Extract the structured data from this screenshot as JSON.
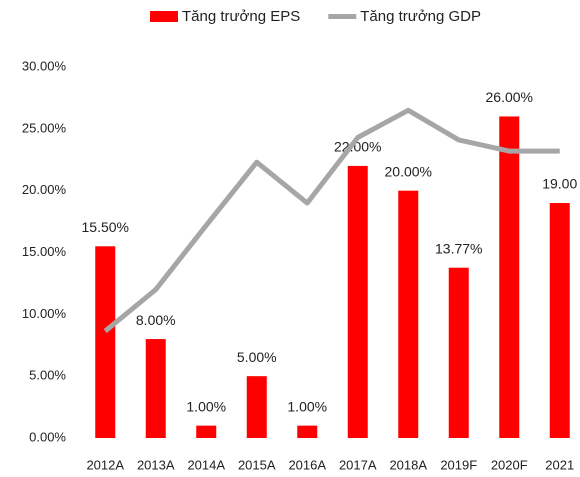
{
  "chart_data": {
    "type": "bar",
    "categories": [
      "2012A",
      "2013A",
      "2014A",
      "2015A",
      "2016A",
      "2017A",
      "2018A",
      "2019F",
      "2020F",
      "2021"
    ],
    "series": [
      {
        "name": "Tăng trưởng EPS",
        "type": "bar",
        "color": "#ff0000",
        "values": [
          15.5,
          8,
          1,
          5,
          1,
          22,
          20,
          13.77,
          26,
          19
        ],
        "value_labels": [
          "15.50%",
          "8.00%",
          "1.00%",
          "5.00%",
          "1.00%",
          "22.00%",
          "20.00%",
          "13.77%",
          "26.00%",
          "19.00"
        ]
      },
      {
        "name": "Tăng trưởng GDP",
        "type": "line",
        "color": "#a6a6a6",
        "values": [
          8.65,
          12,
          17.2,
          22.3,
          19,
          24.3,
          26.5,
          24.1,
          23.2,
          23.2
        ]
      }
    ],
    "ylim": [
      0,
      30
    ],
    "yticks": [
      {
        "value": 0,
        "label": "0.00%"
      },
      {
        "value": 5,
        "label": "5.00%"
      },
      {
        "value": 10,
        "label": "10.00%"
      },
      {
        "value": 15,
        "label": "15.00%"
      },
      {
        "value": 20,
        "label": "20.00%"
      },
      {
        "value": 25,
        "label": "25.00%"
      },
      {
        "value": 30,
        "label": "30.00%"
      }
    ],
    "grid": false,
    "legend": "top"
  }
}
